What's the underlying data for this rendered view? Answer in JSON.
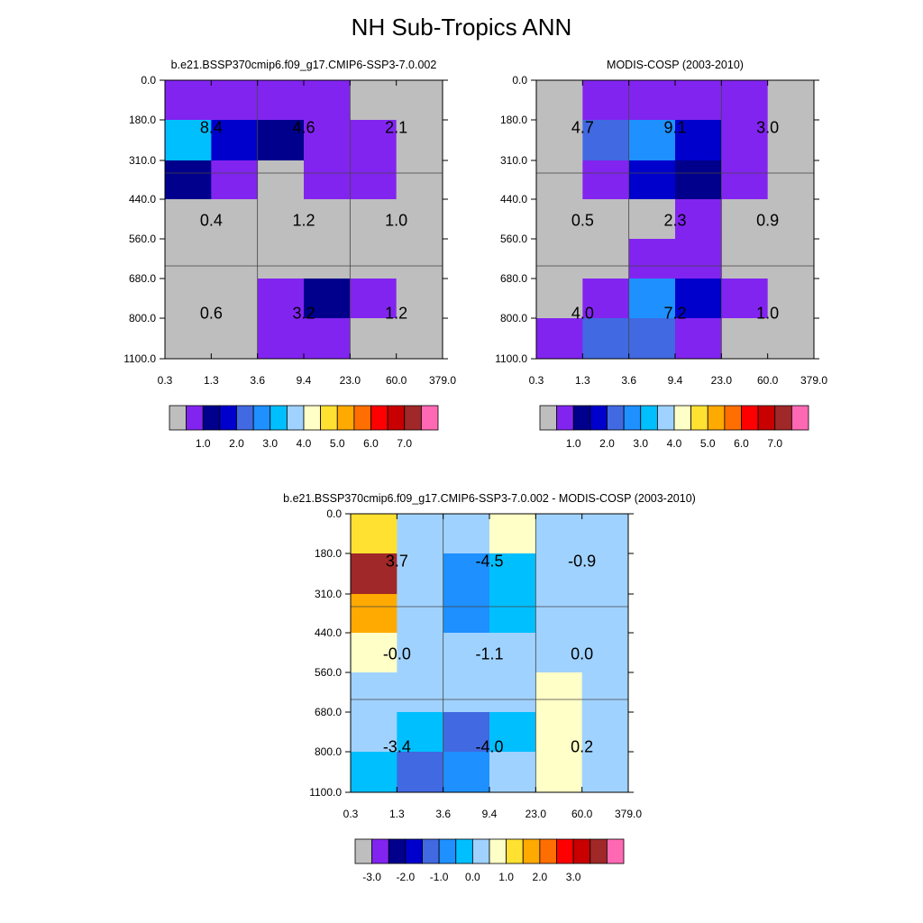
{
  "title": "NH Sub-Tropics ANN",
  "colors": {
    "raw_palette": [
      "#bebebe",
      "#8224f0",
      "#00008c",
      "#0000cd",
      "#4169e1",
      "#1e90ff",
      "#00bfff",
      "#a0d2ff",
      "#ffffc8",
      "#ffe132",
      "#ffaa00",
      "#ff6e00",
      "#ff0000",
      "#c80000",
      "#a02828",
      "#ff69b4"
    ],
    "diff_palette": [
      "#bebebe",
      "#8224f0",
      "#00008c",
      "#0000cd",
      "#4169e1",
      "#1e90ff",
      "#00bfff",
      "#a0d2ff",
      "#ffffc8",
      "#ffe132",
      "#ffaa00",
      "#ff6e00",
      "#ff0000",
      "#c80000",
      "#a02828",
      "#ff69b4"
    ]
  },
  "chart_data": [
    {
      "id": "model",
      "type": "heatmap",
      "title": "b.e21.BSSP370cmip6.f09_g17.CMIP6-SSP3-7.0.002",
      "x_ticks": [
        "0.3",
        "1.3",
        "3.6",
        "9.4",
        "23.0",
        "60.0",
        "379.0"
      ],
      "y_ticks": [
        "0.0",
        "180.0",
        "310.0",
        "440.0",
        "560.0",
        "680.0",
        "800.0",
        "1100.0"
      ],
      "cells": [
        [
          1,
          1,
          1,
          1,
          0,
          0
        ],
        [
          6,
          3,
          2,
          1,
          1,
          0
        ],
        [
          2,
          1,
          0,
          1,
          1,
          0
        ],
        [
          0,
          0,
          0,
          0,
          0,
          0
        ],
        [
          0,
          0,
          0,
          0,
          0,
          0
        ],
        [
          0,
          0,
          1,
          2,
          1,
          0
        ],
        [
          0,
          0,
          1,
          1,
          0,
          0
        ]
      ],
      "box_labels": [
        [
          "8.4",
          "4.6",
          "2.1"
        ],
        [
          "0.4",
          "1.2",
          "1.0"
        ],
        [
          "0.6",
          "3.2",
          "1.2"
        ]
      ],
      "colorbar_labels": [
        "1.0",
        "2.0",
        "3.0",
        "4.0",
        "5.0",
        "6.0",
        "7.0"
      ]
    },
    {
      "id": "obs",
      "type": "heatmap",
      "title": "MODIS-COSP (2003-2010)",
      "x_ticks": [
        "0.3",
        "1.3",
        "3.6",
        "9.4",
        "23.0",
        "60.0",
        "379.0"
      ],
      "y_ticks": [
        "0.0",
        "180.0",
        "310.0",
        "440.0",
        "560.0",
        "680.0",
        "800.0",
        "1100.0"
      ],
      "cells": [
        [
          0,
          1,
          1,
          1,
          1,
          0
        ],
        [
          0,
          4,
          5,
          3,
          1,
          0
        ],
        [
          0,
          1,
          3,
          2,
          1,
          0
        ],
        [
          0,
          0,
          0,
          1,
          0,
          0
        ],
        [
          0,
          0,
          1,
          1,
          0,
          0
        ],
        [
          0,
          1,
          5,
          3,
          1,
          0
        ],
        [
          1,
          4,
          4,
          1,
          0,
          0
        ]
      ],
      "box_labels": [
        [
          "4.7",
          "9.1",
          "3.0"
        ],
        [
          "0.5",
          "2.3",
          "0.9"
        ],
        [
          "4.0",
          "7.2",
          "1.0"
        ]
      ],
      "colorbar_labels": [
        "1.0",
        "2.0",
        "3.0",
        "4.0",
        "5.0",
        "6.0",
        "7.0"
      ]
    },
    {
      "id": "diff",
      "type": "heatmap",
      "title": "b.e21.BSSP370cmip6.f09_g17.CMIP6-SSP3-7.0.002 - MODIS-COSP (2003-2010)",
      "x_ticks": [
        "0.3",
        "1.3",
        "3.6",
        "9.4",
        "23.0",
        "60.0",
        "379.0"
      ],
      "y_ticks": [
        "0.0",
        "180.0",
        "310.0",
        "440.0",
        "560.0",
        "680.0",
        "800.0",
        "1100.0"
      ],
      "cells": [
        [
          9,
          7,
          7,
          8,
          7,
          7
        ],
        [
          14,
          7,
          5,
          6,
          7,
          7
        ],
        [
          10,
          7,
          5,
          6,
          7,
          7
        ],
        [
          8,
          7,
          7,
          7,
          7,
          7
        ],
        [
          7,
          7,
          7,
          7,
          8,
          7
        ],
        [
          7,
          6,
          4,
          6,
          8,
          7
        ],
        [
          6,
          4,
          5,
          7,
          8,
          7
        ]
      ],
      "box_labels": [
        [
          "3.7",
          "-4.5",
          "-0.9"
        ],
        [
          "-0.0",
          "-1.1",
          "0.0"
        ],
        [
          "-3.4",
          "-4.0",
          "0.2"
        ]
      ],
      "colorbar_labels": [
        "-3.0",
        "-2.0",
        "-1.0",
        "0.0",
        "1.0",
        "2.0",
        "3.0"
      ]
    }
  ]
}
